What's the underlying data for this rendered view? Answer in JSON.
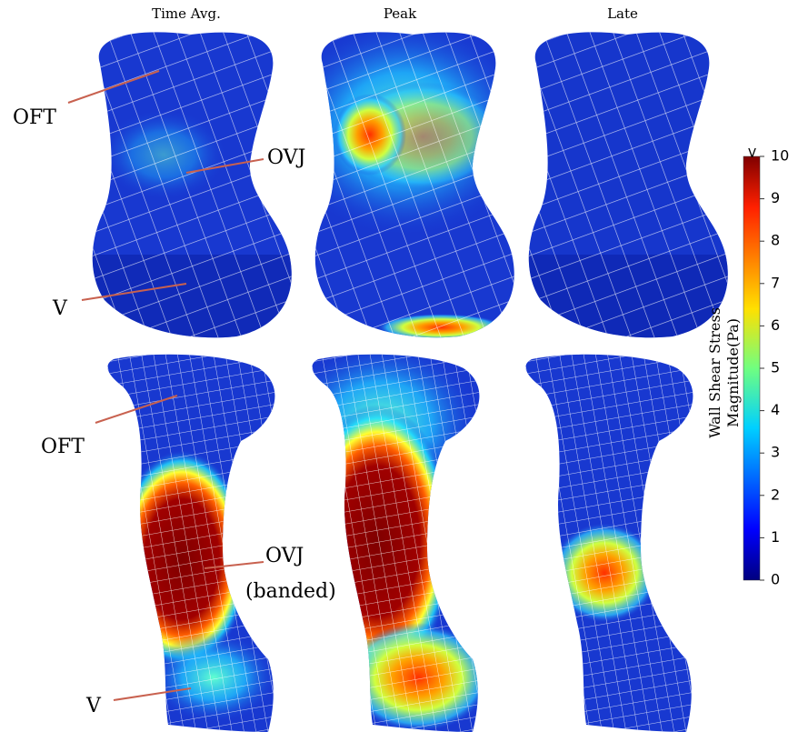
{
  "column_titles": [
    "Time Avg.",
    "Peak",
    "Late"
  ],
  "top_annotations": [
    "OFT",
    "OVJ",
    "V"
  ],
  "bottom_annotations": [
    "OFT",
    "OVJ",
    "(banded)",
    "V"
  ],
  "colorbar": {
    "label_lines": [
      "Wall Shear Stress",
      "Magnitude(Pa)"
    ],
    "range": [
      0,
      10
    ],
    "ticks": [
      0,
      1,
      2,
      3,
      4,
      5,
      6,
      7,
      8,
      9,
      10
    ],
    "overflow_marker": ">"
  }
}
